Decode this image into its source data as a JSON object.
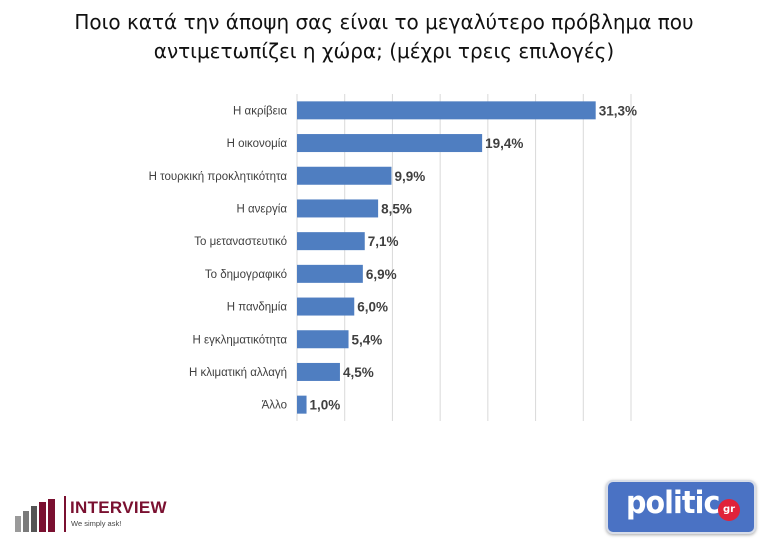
{
  "title": {
    "line1": "Ποιο κατά την άποψη σας είναι το μεγαλύτερο πρόβλημα που",
    "line2": "αντιμετωπίζει η χώρα; (μέχρι τρεις επιλογές)"
  },
  "chart_data": {
    "type": "bar",
    "orientation": "horizontal",
    "title": "Ποιο κατά την άποψη σας είναι το μεγαλύτερο πρόβλημα που αντιμετωπίζει η χώρα; (μέχρι τρεις επιλογές)",
    "categories": [
      "Η ακρίβεια",
      "Η οικονομία",
      "Η τουρκική προκλητικότητα",
      "Η ανεργία",
      "Το μεταναστευτικό",
      "Το δημογραφικό",
      "Η πανδημία",
      "Η εγκληματικότητα",
      "Η κλιματική αλλαγή",
      "Άλλο"
    ],
    "values": [
      31.3,
      19.4,
      9.9,
      8.5,
      7.1,
      6.9,
      6.0,
      5.4,
      4.5,
      1.0
    ],
    "value_labels": [
      "31,3%",
      "19,4%",
      "9,9%",
      "8,5%",
      "7,1%",
      "6,9%",
      "6,0%",
      "5,4%",
      "4,5%",
      "1,0%"
    ],
    "xlim": [
      0,
      35
    ],
    "grid": true,
    "bar_color": "#4f7ec1"
  },
  "logos": {
    "interview_name": "INTERVIEW",
    "interview_tagline": "We simply ask!",
    "politic_word": "politic",
    "politic_suffix": "gr"
  },
  "colors": {
    "bar": "#4f7ec1",
    "interview_brand": "#7a1030",
    "politic_brand": "#4a72c4",
    "politic_accent": "#e0223a"
  }
}
